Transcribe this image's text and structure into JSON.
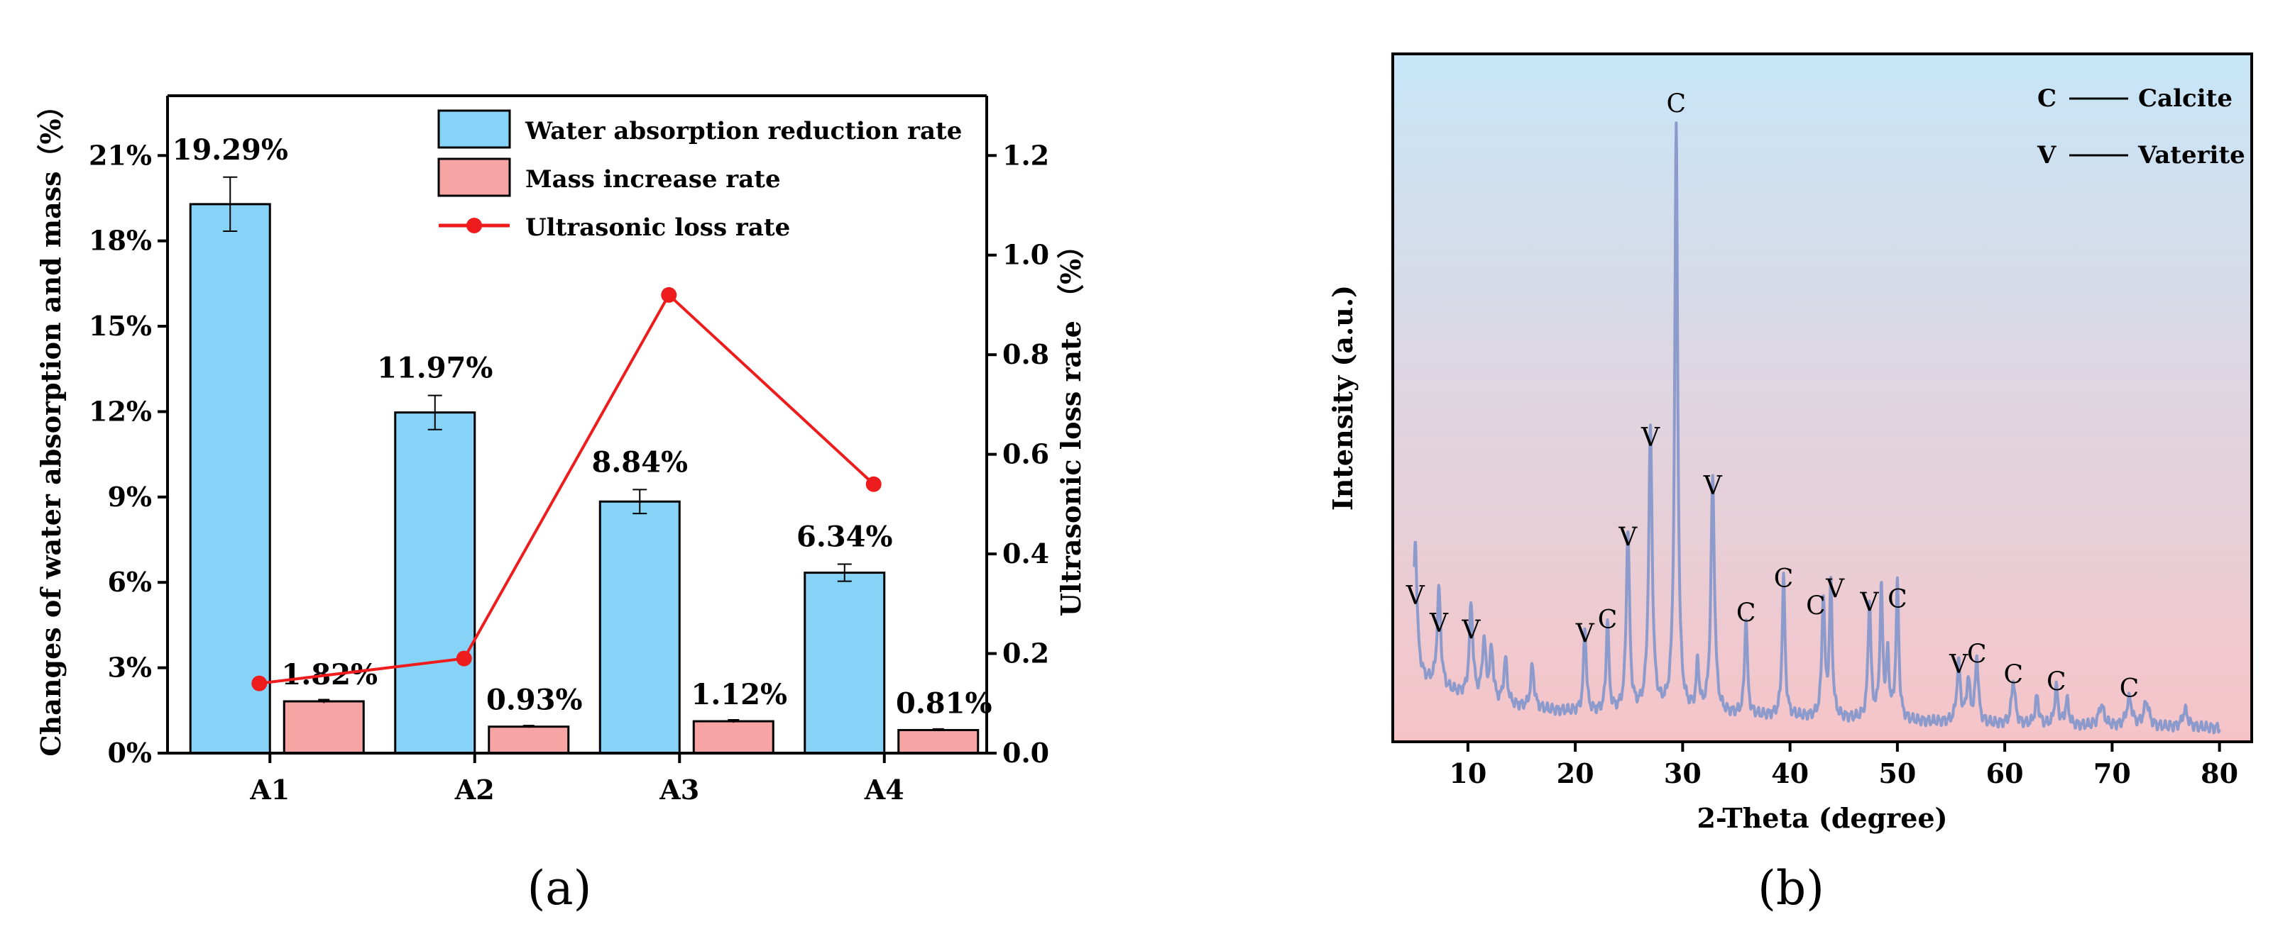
{
  "panel_labels": {
    "a": "(a)",
    "b": "(b)"
  },
  "chart_data": [
    {
      "type": "bar",
      "panel": "(a)",
      "categories": [
        "A1",
        "A2",
        "A3",
        "A4"
      ],
      "y_left": {
        "label": "Changes of water absorption and mass（%）",
        "range": [
          0,
          23.1
        ],
        "ticks": [
          0,
          3,
          6,
          9,
          12,
          15,
          18,
          21
        ],
        "tick_labels": [
          "0%",
          "3%",
          "6%",
          "9%",
          "12%",
          "15%",
          "18%",
          "21%"
        ]
      },
      "y_right": {
        "label": "Ultrasonic loss rate （%）",
        "range": [
          0,
          1.32
        ],
        "ticks": [
          0.0,
          0.2,
          0.4,
          0.6,
          0.8,
          1.0,
          1.2
        ],
        "tick_labels": [
          "0.0",
          "0.2",
          "0.4",
          "0.6",
          "0.8",
          "1.0",
          "1.2"
        ]
      },
      "series": [
        {
          "name": "Water absorption reduction rate",
          "kind": "bar",
          "color": "#87d3f8",
          "values": [
            19.29,
            11.97,
            8.84,
            6.34
          ],
          "errors": [
            0.95,
            0.6,
            0.42,
            0.3
          ],
          "labels": [
            "19.29%",
            "11.97%",
            "8.84%",
            "6.34%"
          ]
        },
        {
          "name": "Mass increase rate",
          "kind": "bar",
          "color": "#f7a5a4",
          "values": [
            1.82,
            0.93,
            1.12,
            0.81
          ],
          "errors": [
            0.06,
            0.04,
            0.05,
            0.04
          ],
          "labels": [
            "1.82%",
            "0.93%",
            "1.12%",
            "0.81%"
          ]
        },
        {
          "name": "Ultrasonic loss rate",
          "kind": "line",
          "axis": "right",
          "color": "#ee1c1c",
          "values": [
            0.14,
            0.19,
            0.92,
            0.54
          ]
        }
      ],
      "legend_position": "top-right"
    },
    {
      "type": "line",
      "panel": "(b)",
      "xlabel": "2-Theta (degree)",
      "ylabel": "Intensity (a.u.)",
      "xlim": [
        3,
        83
      ],
      "x_ticks": [
        10,
        20,
        30,
        40,
        50,
        60,
        70,
        80
      ],
      "x_tick_labels": [
        "10",
        "20",
        "30",
        "40",
        "50",
        "60",
        "70",
        "80"
      ],
      "ylim": [
        0,
        1000
      ],
      "line_color": "#8c9bcb",
      "background_gradient": [
        "#c7e6f8",
        "#f6c4c8"
      ],
      "legend_notes": [
        {
          "symbol": "C",
          "name": "Calcite"
        },
        {
          "symbol": "V",
          "name": "Vaterite"
        }
      ],
      "baseline": [
        [
          5,
          115
        ],
        [
          6,
          90
        ],
        [
          8,
          75
        ],
        [
          10,
          65
        ],
        [
          12,
          55
        ],
        [
          15,
          50
        ],
        [
          18,
          45
        ],
        [
          22,
          42
        ],
        [
          30,
          40
        ],
        [
          40,
          36
        ],
        [
          50,
          30
        ],
        [
          60,
          25
        ],
        [
          70,
          22
        ],
        [
          80,
          20
        ]
      ],
      "peaks": [
        {
          "x": 5.1,
          "y": 180,
          "w": 0.18
        },
        {
          "x": 7.3,
          "y": 140,
          "w": 0.2
        },
        {
          "x": 10.3,
          "y": 135,
          "w": 0.2
        },
        {
          "x": 11.5,
          "y": 85,
          "w": 0.2
        },
        {
          "x": 12.2,
          "y": 75,
          "w": 0.2
        },
        {
          "x": 13.5,
          "y": 65,
          "w": 0.2
        },
        {
          "x": 16,
          "y": 60,
          "w": 0.2
        },
        {
          "x": 20.9,
          "y": 125,
          "w": 0.15
        },
        {
          "x": 23,
          "y": 135,
          "w": 0.15
        },
        {
          "x": 24.9,
          "y": 265,
          "w": 0.18
        },
        {
          "x": 27,
          "y": 410,
          "w": 0.2
        },
        {
          "x": 29.4,
          "y": 850,
          "w": 0.17
        },
        {
          "x": 31.4,
          "y": 70,
          "w": 0.15
        },
        {
          "x": 32.8,
          "y": 340,
          "w": 0.2
        },
        {
          "x": 35.9,
          "y": 145,
          "w": 0.15
        },
        {
          "x": 39.4,
          "y": 200,
          "w": 0.16
        },
        {
          "x": 43.1,
          "y": 175,
          "w": 0.16
        },
        {
          "x": 43.8,
          "y": 190,
          "w": 0.16
        },
        {
          "x": 47.4,
          "y": 170,
          "w": 0.16
        },
        {
          "x": 48.5,
          "y": 185,
          "w": 0.16
        },
        {
          "x": 49.1,
          "y": 90,
          "w": 0.15
        },
        {
          "x": 50,
          "y": 195,
          "w": 0.16
        },
        {
          "x": 55.7,
          "y": 85,
          "w": 0.2
        },
        {
          "x": 56.6,
          "y": 60,
          "w": 0.2
        },
        {
          "x": 57.4,
          "y": 95,
          "w": 0.17
        },
        {
          "x": 60.8,
          "y": 65,
          "w": 0.2
        },
        {
          "x": 63,
          "y": 40,
          "w": 0.2
        },
        {
          "x": 64.8,
          "y": 55,
          "w": 0.18
        },
        {
          "x": 65.8,
          "y": 35,
          "w": 0.2
        },
        {
          "x": 69,
          "y": 30,
          "w": 0.3
        },
        {
          "x": 71.6,
          "y": 40,
          "w": 0.3
        },
        {
          "x": 73.2,
          "y": 35,
          "w": 0.3
        },
        {
          "x": 76.8,
          "y": 25,
          "w": 0.3
        }
      ],
      "annotations": [
        {
          "text": "V",
          "x": 5.1,
          "y": 200
        },
        {
          "text": "V",
          "x": 7.3,
          "y": 160
        },
        {
          "text": "V",
          "x": 10.3,
          "y": 150
        },
        {
          "text": "V",
          "x": 20.9,
          "y": 145
        },
        {
          "text": "C",
          "x": 23,
          "y": 165
        },
        {
          "text": "V",
          "x": 24.9,
          "y": 285
        },
        {
          "text": "V",
          "x": 27,
          "y": 430
        },
        {
          "text": "C",
          "x": 29.4,
          "y": 915
        },
        {
          "text": "V",
          "x": 32.8,
          "y": 360
        },
        {
          "text": "C",
          "x": 35.9,
          "y": 175
        },
        {
          "text": "C",
          "x": 39.4,
          "y": 225
        },
        {
          "text": "C",
          "x": 42.4,
          "y": 185
        },
        {
          "text": "V",
          "x": 44.2,
          "y": 210
        },
        {
          "text": "V",
          "x": 47.4,
          "y": 190
        },
        {
          "text": "C",
          "x": 50,
          "y": 195
        },
        {
          "text": "V",
          "x": 55.7,
          "y": 100
        },
        {
          "text": "C",
          "x": 57.4,
          "y": 115
        },
        {
          "text": "C",
          "x": 60.8,
          "y": 85
        },
        {
          "text": "C",
          "x": 64.8,
          "y": 75
        },
        {
          "text": "C",
          "x": 71.6,
          "y": 65
        }
      ]
    }
  ]
}
